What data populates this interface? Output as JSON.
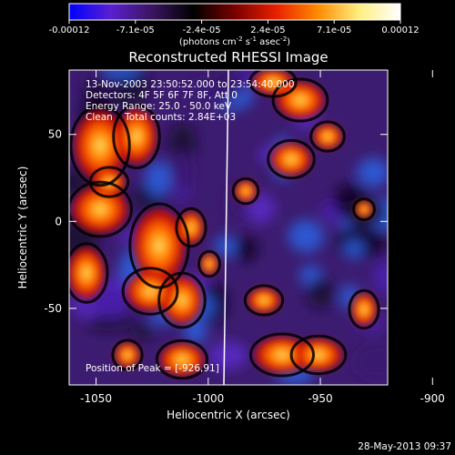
{
  "colorbar": {
    "ticks": [
      "-0.00012",
      "-7.1e-05",
      "-2.4e-05",
      "2.4e-05",
      "7.1e-05",
      "0.00012"
    ],
    "units_prefix": "(photons cm",
    "units_exp1": "-2",
    "units_mid": " s",
    "units_exp2": "-1",
    "units_mid2": " asec",
    "units_exp3": "-2",
    "units_suffix": ")",
    "colors": [
      "#0000ff",
      "#5a1fd0",
      "#3a1560",
      "#000000",
      "#7a0000",
      "#e82000",
      "#ff8a00",
      "#ffee80",
      "#ffffff"
    ]
  },
  "title": "Reconstructed RHESSI Image",
  "info": {
    "line1": "13-Nov-2003 23:50:52.000 to 23:54:40.000",
    "line2": "Detectors: 4F 5F 6F 7F 8F, Att 0",
    "line3": "Energy Range: 25.0 - 50.0 keV",
    "line4": "Clean    Total counts: 2.84E+03"
  },
  "peak_label": "Position of Peak = [-926,91]",
  "axes": {
    "xlabel": "Heliocentric X (arcsec)",
    "ylabel": "Heliocentric Y (arcsec)",
    "xticks": [
      {
        "label": "-1050",
        "value": -1050
      },
      {
        "label": "-1000",
        "value": -1000
      },
      {
        "label": "-950",
        "value": -950
      },
      {
        "label": "-900",
        "value": -900
      }
    ],
    "yticks": [
      {
        "label": "50",
        "value": 50
      },
      {
        "label": "0",
        "value": 0
      },
      {
        "label": "-50",
        "value": -50
      }
    ],
    "xrange": [
      -1062,
      -920
    ],
    "yrange": [
      -94,
      87
    ]
  },
  "timestamp": "28-May-2013 09:37",
  "limb_color": "#ffffff"
}
